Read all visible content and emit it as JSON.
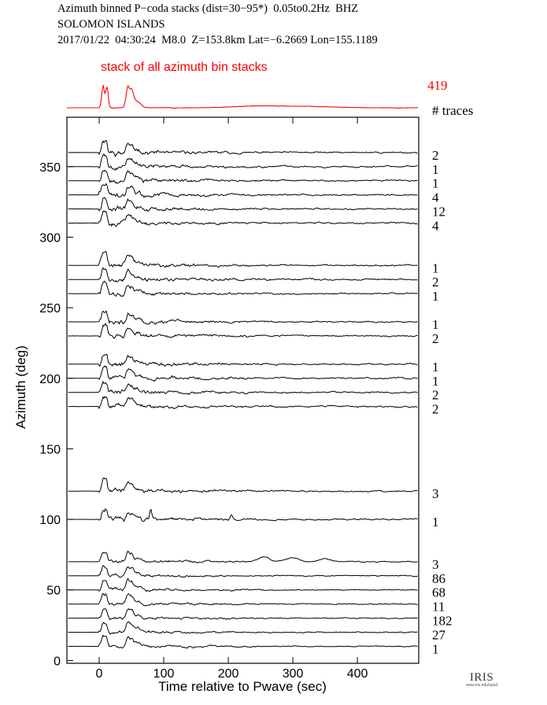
{
  "header": {
    "line1": "Azimuth binned P−coda stacks (dist=30−95*)  0.05to0.2Hz  BHZ",
    "line2": "SOLOMON ISLANDS",
    "line3": "2017/01/22  04:30:24  M8.0  Z=153.8km Lat=−6.2669 Lon=155.1189"
  },
  "colors": {
    "overall_stack": "#ff0000",
    "traces": "#000000",
    "axes": "#000000"
  },
  "logo": {
    "text": "IRIS",
    "subtext": "www.iris.edu/spud"
  },
  "chart_data": [
    {
      "type": "line",
      "title": "stack of all azimuth bin stacks",
      "trace_count": "419",
      "count_column_label": "# traces",
      "x_range": [
        -50,
        495
      ],
      "description_of_shape": "peaks near 8 s and 48 s after P",
      "peaks_x_sec": [
        8,
        48
      ]
    },
    {
      "type": "line",
      "xlabel": "Time relative to Pwave (sec)",
      "ylabel": "Azimuth (deg)",
      "x_ticks": [
        0,
        100,
        200,
        300,
        400
      ],
      "y_ticks": [
        0,
        50,
        100,
        150,
        200,
        250,
        300,
        350
      ],
      "xlim": [
        -50,
        495
      ],
      "ylim": [
        -2,
        385
      ],
      "series": [
        {
          "azimuth": 360,
          "label": "2"
        },
        {
          "azimuth": 350,
          "label": "1"
        },
        {
          "azimuth": 340,
          "label": "1"
        },
        {
          "azimuth": 330,
          "label": "4"
        },
        {
          "azimuth": 320,
          "label": "12"
        },
        {
          "azimuth": 310,
          "label": "4"
        },
        {
          "azimuth": 280,
          "label": "1"
        },
        {
          "azimuth": 270,
          "label": "2"
        },
        {
          "azimuth": 260,
          "label": "1"
        },
        {
          "azimuth": 240,
          "label": "1"
        },
        {
          "azimuth": 230,
          "label": "2"
        },
        {
          "azimuth": 210,
          "label": "1"
        },
        {
          "azimuth": 200,
          "label": "1"
        },
        {
          "azimuth": 190,
          "label": "2"
        },
        {
          "azimuth": 180,
          "label": "2"
        },
        {
          "azimuth": 120,
          "label": "3"
        },
        {
          "azimuth": 100,
          "label": "1"
        },
        {
          "azimuth": 70,
          "label": "3"
        },
        {
          "azimuth": 60,
          "label": "86"
        },
        {
          "azimuth": 50,
          "label": "68"
        },
        {
          "azimuth": 40,
          "label": "11"
        },
        {
          "azimuth": 30,
          "label": "182"
        },
        {
          "azimuth": 20,
          "label": "27"
        },
        {
          "azimuth": 10,
          "label": "1"
        }
      ]
    }
  ]
}
